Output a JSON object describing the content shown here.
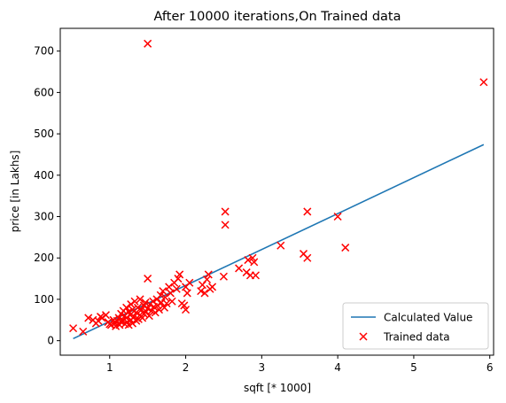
{
  "chart_data": {
    "type": "scatter",
    "title": "After 10000 iterations,On Trained data",
    "xlabel": "sqft [* 1000]",
    "ylabel": "price [in Lakhs]",
    "xlim": [
      0.35,
      6.05
    ],
    "ylim": [
      -35,
      755
    ],
    "xticks": [
      1,
      2,
      3,
      4,
      5,
      6
    ],
    "yticks": [
      0,
      100,
      200,
      300,
      400,
      500,
      600,
      700
    ],
    "grid": false,
    "legend_position": "lower right",
    "series": [
      {
        "name": "Calculated Value",
        "kind": "line",
        "color": "#1f77b4",
        "points": [
          [
            0.52,
            5
          ],
          [
            5.92,
            474
          ]
        ]
      },
      {
        "name": "Trained data",
        "kind": "scatter",
        "marker": "x",
        "color": "#ff0000",
        "points": [
          [
            1.5,
            718
          ],
          [
            5.92,
            625
          ],
          [
            0.52,
            30
          ],
          [
            0.65,
            22
          ],
          [
            0.72,
            55
          ],
          [
            0.78,
            50
          ],
          [
            0.82,
            42
          ],
          [
            0.85,
            48
          ],
          [
            0.88,
            58
          ],
          [
            0.9,
            55
          ],
          [
            0.95,
            62
          ],
          [
            0.98,
            45
          ],
          [
            1.0,
            40
          ],
          [
            1.02,
            38
          ],
          [
            1.05,
            50
          ],
          [
            1.07,
            42
          ],
          [
            1.08,
            35
          ],
          [
            1.1,
            48
          ],
          [
            1.12,
            55
          ],
          [
            1.13,
            38
          ],
          [
            1.15,
            45
          ],
          [
            1.15,
            65
          ],
          [
            1.17,
            50
          ],
          [
            1.18,
            72
          ],
          [
            1.2,
            40
          ],
          [
            1.2,
            60
          ],
          [
            1.22,
            55
          ],
          [
            1.22,
            80
          ],
          [
            1.23,
            45
          ],
          [
            1.25,
            38
          ],
          [
            1.25,
            70
          ],
          [
            1.27,
            62
          ],
          [
            1.28,
            50
          ],
          [
            1.28,
            88
          ],
          [
            1.3,
            42
          ],
          [
            1.3,
            75
          ],
          [
            1.32,
            58
          ],
          [
            1.33,
            95
          ],
          [
            1.35,
            48
          ],
          [
            1.35,
            68
          ],
          [
            1.37,
            80
          ],
          [
            1.38,
            52
          ],
          [
            1.4,
            100
          ],
          [
            1.4,
            62
          ],
          [
            1.42,
            75
          ],
          [
            1.43,
            55
          ],
          [
            1.45,
            85
          ],
          [
            1.45,
            65
          ],
          [
            1.47,
            92
          ],
          [
            1.48,
            70
          ],
          [
            1.5,
            150
          ],
          [
            1.5,
            78
          ],
          [
            1.52,
            60
          ],
          [
            1.53,
            88
          ],
          [
            1.55,
            72
          ],
          [
            1.57,
            95
          ],
          [
            1.58,
            82
          ],
          [
            1.6,
            68
          ],
          [
            1.62,
            100
          ],
          [
            1.63,
            85
          ],
          [
            1.65,
            75
          ],
          [
            1.67,
            110
          ],
          [
            1.68,
            92
          ],
          [
            1.7,
            120
          ],
          [
            1.72,
            80
          ],
          [
            1.73,
            105
          ],
          [
            1.75,
            90
          ],
          [
            1.78,
            130
          ],
          [
            1.8,
            115
          ],
          [
            1.82,
            95
          ],
          [
            1.85,
            140
          ],
          [
            1.88,
            125
          ],
          [
            1.9,
            150
          ],
          [
            1.92,
            160
          ],
          [
            1.95,
            90
          ],
          [
            1.98,
            85
          ],
          [
            2.0,
            75
          ],
          [
            2.0,
            130
          ],
          [
            2.02,
            115
          ],
          [
            2.05,
            140
          ],
          [
            2.2,
            120
          ],
          [
            2.22,
            135
          ],
          [
            2.25,
            115
          ],
          [
            2.28,
            148
          ],
          [
            2.3,
            160
          ],
          [
            2.32,
            125
          ],
          [
            2.35,
            130
          ],
          [
            2.5,
            155
          ],
          [
            2.52,
            312
          ],
          [
            2.52,
            280
          ],
          [
            2.7,
            175
          ],
          [
            2.8,
            165
          ],
          [
            2.82,
            195
          ],
          [
            2.85,
            158
          ],
          [
            2.88,
            200
          ],
          [
            2.9,
            190
          ],
          [
            2.92,
            158
          ],
          [
            3.25,
            230
          ],
          [
            3.55,
            210
          ],
          [
            3.6,
            200
          ],
          [
            3.6,
            312
          ],
          [
            4.0,
            300
          ],
          [
            4.1,
            225
          ]
        ]
      }
    ]
  }
}
